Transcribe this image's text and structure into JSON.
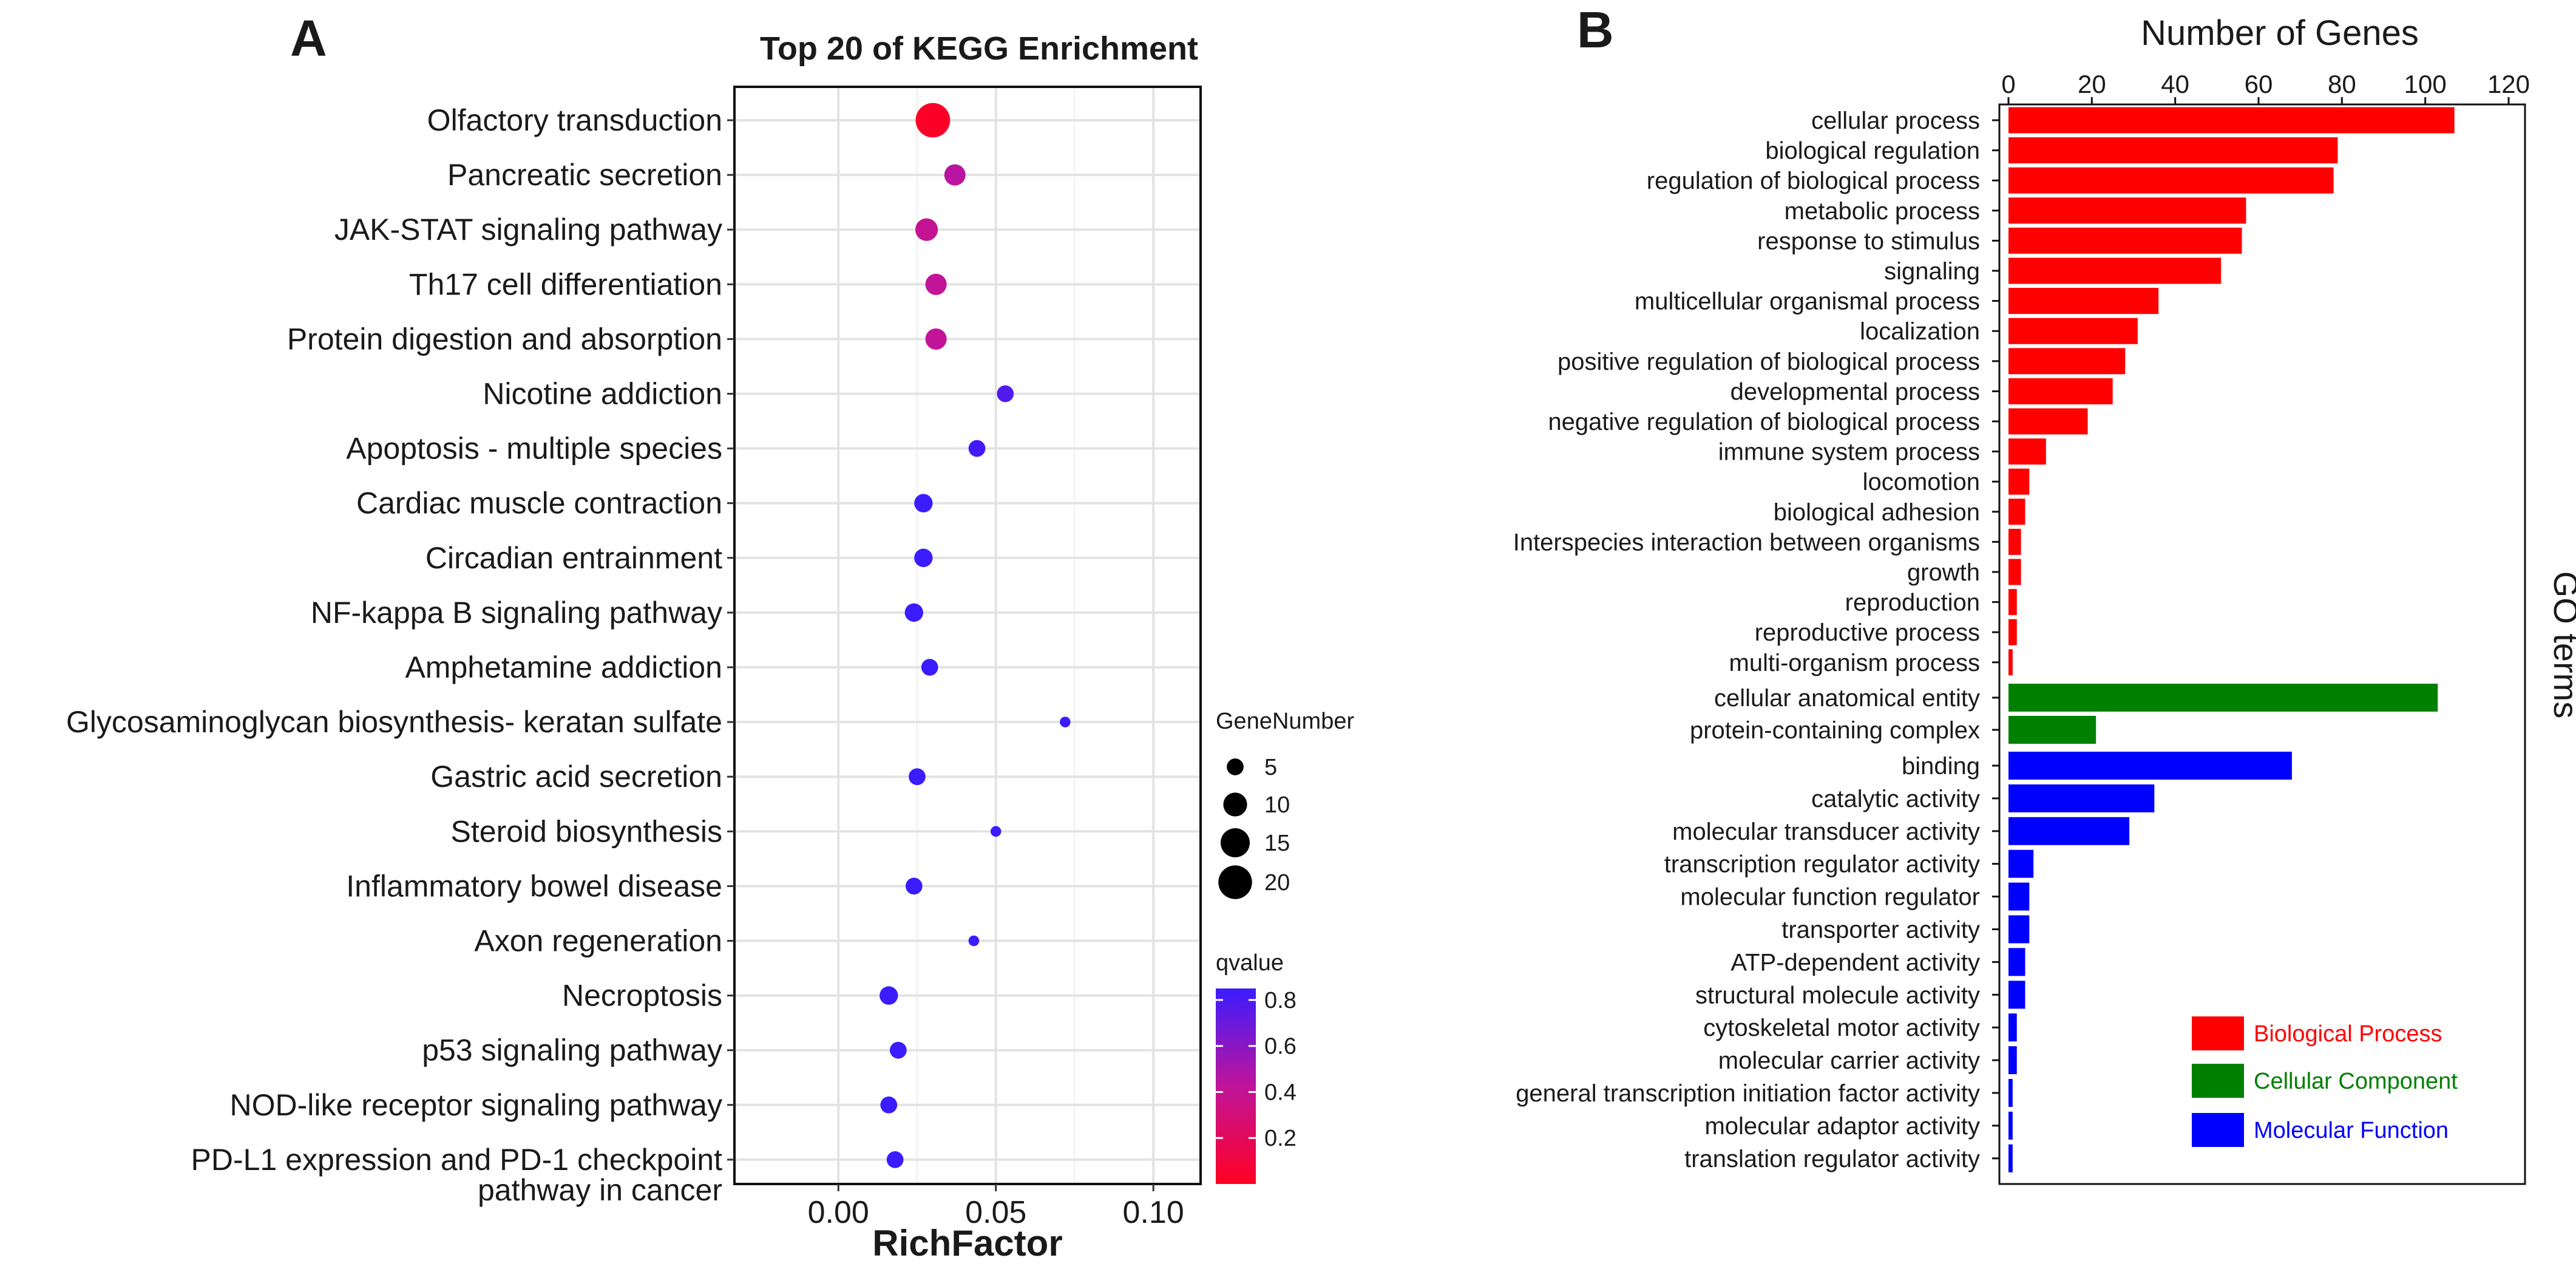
{
  "panel_a": {
    "letter": "A",
    "chart_data": {
      "type": "scatter",
      "title": "Top 20 of KEGG Enrichment",
      "xlabel": "RichFactor",
      "ylabel": "",
      "xlim": [
        -0.033,
        0.115
      ],
      "xticks": [
        0.0,
        0.05,
        0.1
      ],
      "xtick_labels": [
        "0.00",
        "0.05",
        "0.10"
      ],
      "grid": true,
      "categories": [
        "Olfactory transduction",
        "Pancreatic secretion",
        "JAK-STAT signaling pathway",
        "Th17 cell differentiation",
        "Protein digestion and absorption",
        "Nicotine addiction",
        "Apoptosis - multiple species",
        "Cardiac muscle contraction",
        "Circadian entrainment",
        "NF-kappa B signaling pathway",
        "Amphetamine addiction",
        "Glycosaminoglycan biosynthesis- keratan sulfate",
        "Gastric acid secretion",
        "Steroid biosynthesis",
        "Inflammatory bowel disease",
        "Axon regeneration",
        "Necroptosis",
        "p53 signaling pathway",
        "NOD-like receptor signaling pathway",
        "PD-L1 expression and PD-1 checkpoint pathway in cancer"
      ],
      "category_lines": [
        [
          "Olfactory transduction"
        ],
        [
          "Pancreatic secretion"
        ],
        [
          "JAK-STAT signaling pathway"
        ],
        [
          "Th17 cell differentiation"
        ],
        [
          "Protein digestion and absorption"
        ],
        [
          "Nicotine addiction"
        ],
        [
          "Apoptosis - multiple species"
        ],
        [
          "Cardiac muscle contraction"
        ],
        [
          "Circadian entrainment"
        ],
        [
          "NF-kappa B signaling pathway"
        ],
        [
          "Amphetamine addiction"
        ],
        [
          "Glycosaminoglycan biosynthesis- keratan sulfate"
        ],
        [
          "Gastric acid secretion"
        ],
        [
          "Steroid biosynthesis"
        ],
        [
          "Inflammatory bowel disease"
        ],
        [
          "Axon regeneration"
        ],
        [
          "Necroptosis"
        ],
        [
          "p53 signaling pathway"
        ],
        [
          "NOD-like receptor signaling pathway"
        ],
        [
          "PD-L1 expression and PD-1 checkpoint",
          "pathway in cancer"
        ]
      ],
      "richfactor": [
        0.03,
        0.037,
        0.028,
        0.031,
        0.031,
        0.053,
        0.044,
        0.027,
        0.027,
        0.024,
        0.029,
        0.072,
        0.025,
        0.05,
        0.024,
        0.043,
        0.016,
        0.019,
        0.016,
        0.018
      ],
      "gene_number": [
        21,
        8,
        9,
        8,
        8,
        5,
        5,
        6,
        6,
        6,
        5,
        2,
        5,
        2,
        5,
        2,
        6,
        5,
        5,
        5
      ],
      "qvalue": [
        0.02,
        0.45,
        0.4,
        0.42,
        0.42,
        0.78,
        0.82,
        0.85,
        0.85,
        0.85,
        0.85,
        0.85,
        0.85,
        0.85,
        0.85,
        0.85,
        0.85,
        0.85,
        0.85,
        0.85
      ],
      "size_legend": {
        "title": "GeneNumber",
        "values": [
          5,
          10,
          15,
          20
        ],
        "labels": [
          "5",
          "10",
          "15",
          "20"
        ]
      },
      "color_legend": {
        "title": "qvalue",
        "range": [
          0.0,
          0.85
        ],
        "ticks": [
          0.2,
          0.4,
          0.6,
          0.8
        ],
        "tick_labels": [
          "0.2",
          "0.4",
          "0.6",
          "0.8"
        ],
        "low_color": "#ff0022",
        "high_color": "#3b1cff"
      }
    }
  },
  "panel_b": {
    "letter": "B",
    "chart_data": {
      "type": "bar",
      "orientation": "horizontal",
      "title": "",
      "xlabel": "Number of Genes",
      "ylabel": "GO terms",
      "xlim": [
        0,
        120
      ],
      "xticks": [
        0,
        20,
        40,
        60,
        80,
        100,
        120
      ],
      "xtick_labels": [
        "0",
        "20",
        "40",
        "60",
        "80",
        "100",
        "120"
      ],
      "series": [
        {
          "name": "Biological Process",
          "color": "#ff0000",
          "categories": [
            "cellular process",
            "biological regulation",
            "regulation of biological process",
            "metabolic process",
            "response to stimulus",
            "signaling",
            "multicellular organismal process",
            "localization",
            "positive regulation of biological process",
            "developmental process",
            "negative regulation of biological process",
            "immune system process",
            "locomotion",
            "biological adhesion",
            "Interspecies interaction between organisms",
            "growth",
            "reproduction",
            "reproductive process",
            "multi-organism process"
          ],
          "values": [
            107,
            79,
            78,
            57,
            56,
            51,
            36,
            31,
            28,
            25,
            19,
            9,
            5,
            4,
            3,
            3,
            2,
            2,
            1
          ]
        },
        {
          "name": "Cellular Component",
          "color": "#008000",
          "categories": [
            "cellular anatomical entity",
            "protein-containing complex"
          ],
          "values": [
            103,
            21
          ]
        },
        {
          "name": "Molecular Function",
          "color": "#0000ff",
          "categories": [
            "binding",
            "catalytic activity",
            "molecular transducer activity",
            "transcription regulator activity",
            "molecular function regulator",
            "transporter activity",
            "ATP-dependent activity",
            "structural molecule activity",
            "cytoskeletal motor activity",
            "molecular carrier activity",
            "general transcription initiation factor activity",
            "molecular adaptor activity",
            "translation regulator activity"
          ],
          "values": [
            68,
            35,
            29,
            6,
            5,
            5,
            4,
            4,
            2,
            2,
            1,
            1,
            1
          ]
        }
      ],
      "legend": [
        "Biological Process",
        "Cellular Component",
        "Molecular Function"
      ]
    }
  }
}
